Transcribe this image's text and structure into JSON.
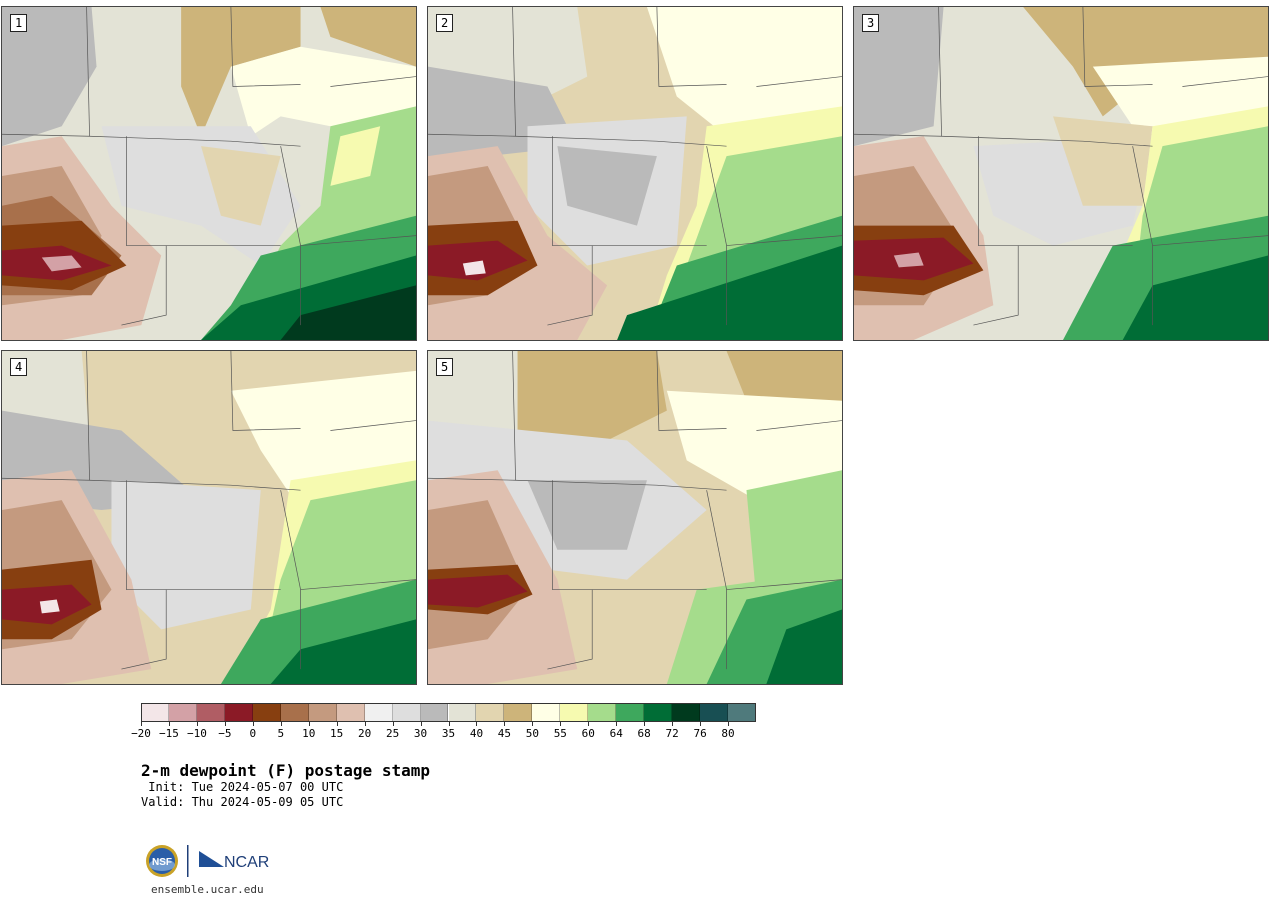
{
  "panels": [
    {
      "label": "1"
    },
    {
      "label": "2"
    },
    {
      "label": "3"
    },
    {
      "label": "4"
    },
    {
      "label": "5"
    }
  ],
  "colorbar": {
    "colors": [
      "#f3e6e8",
      "#d3a1a6",
      "#b05d64",
      "#8b1a26",
      "#873f10",
      "#a8704b",
      "#c49a7f",
      "#dfc0b0",
      "#f0f0f0",
      "#dedede",
      "#bababa",
      "#e3e3d6",
      "#e2d5b0",
      "#cdb47a",
      "#ffffe6",
      "#f6fab0",
      "#a5dc8c",
      "#3ea85d",
      "#006d36",
      "#003a1e",
      "#184f53",
      "#4f7a7c"
    ],
    "ticks": [
      "-20",
      "-15",
      "-10",
      "-5",
      "0",
      "5",
      "10",
      "15",
      "20",
      "25",
      "30",
      "35",
      "40",
      "45",
      "50",
      "55",
      "60",
      "64",
      "68",
      "72",
      "76",
      "80"
    ]
  },
  "title": "2-m dewpoint (F) postage stamp",
  "init": " Init: Tue 2024-05-07 00 UTC",
  "valid": "Valid: Thu 2024-05-09 05 UTC",
  "logos": {
    "nsf": "NSF",
    "ncar": "NCAR"
  },
  "url": "ensemble.ucar.edu"
}
